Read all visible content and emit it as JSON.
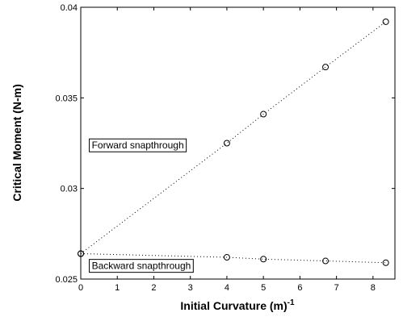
{
  "chart_data": {
    "type": "scatter",
    "title": "",
    "xlabel": "Initial Curvature (m)",
    "xlabel_superscript": "-1",
    "ylabel": "Critical Moment (N-m)",
    "xlim": [
      0,
      8.6
    ],
    "ylim": [
      0.025,
      0.04
    ],
    "xticks": [
      "0",
      "1",
      "2",
      "3",
      "4",
      "5",
      "6",
      "7",
      "8"
    ],
    "yticks": [
      "0.025",
      "0.03",
      "0.035",
      "0.04"
    ],
    "grid": false,
    "series": [
      {
        "x": [
          0,
          4,
          5,
          6.7,
          8.35
        ],
        "y": [
          0.0264,
          0.0325,
          0.0341,
          0.0367,
          0.0392
        ],
        "marker": "circle",
        "line": "dotted",
        "color": "#000000"
      },
      {
        "x": [
          0,
          4,
          5,
          6.7,
          8.35
        ],
        "y": [
          0.0264,
          0.0262,
          0.0261,
          0.026,
          0.0259
        ],
        "marker": "circle",
        "line": "dotted",
        "color": "#000000"
      }
    ],
    "annotations": [
      {
        "text": "Forward snapthrough",
        "x": 0.3,
        "y": 0.0322
      },
      {
        "text": "Backward snapthrough",
        "x": 0.3,
        "y": 0.02555
      }
    ]
  }
}
